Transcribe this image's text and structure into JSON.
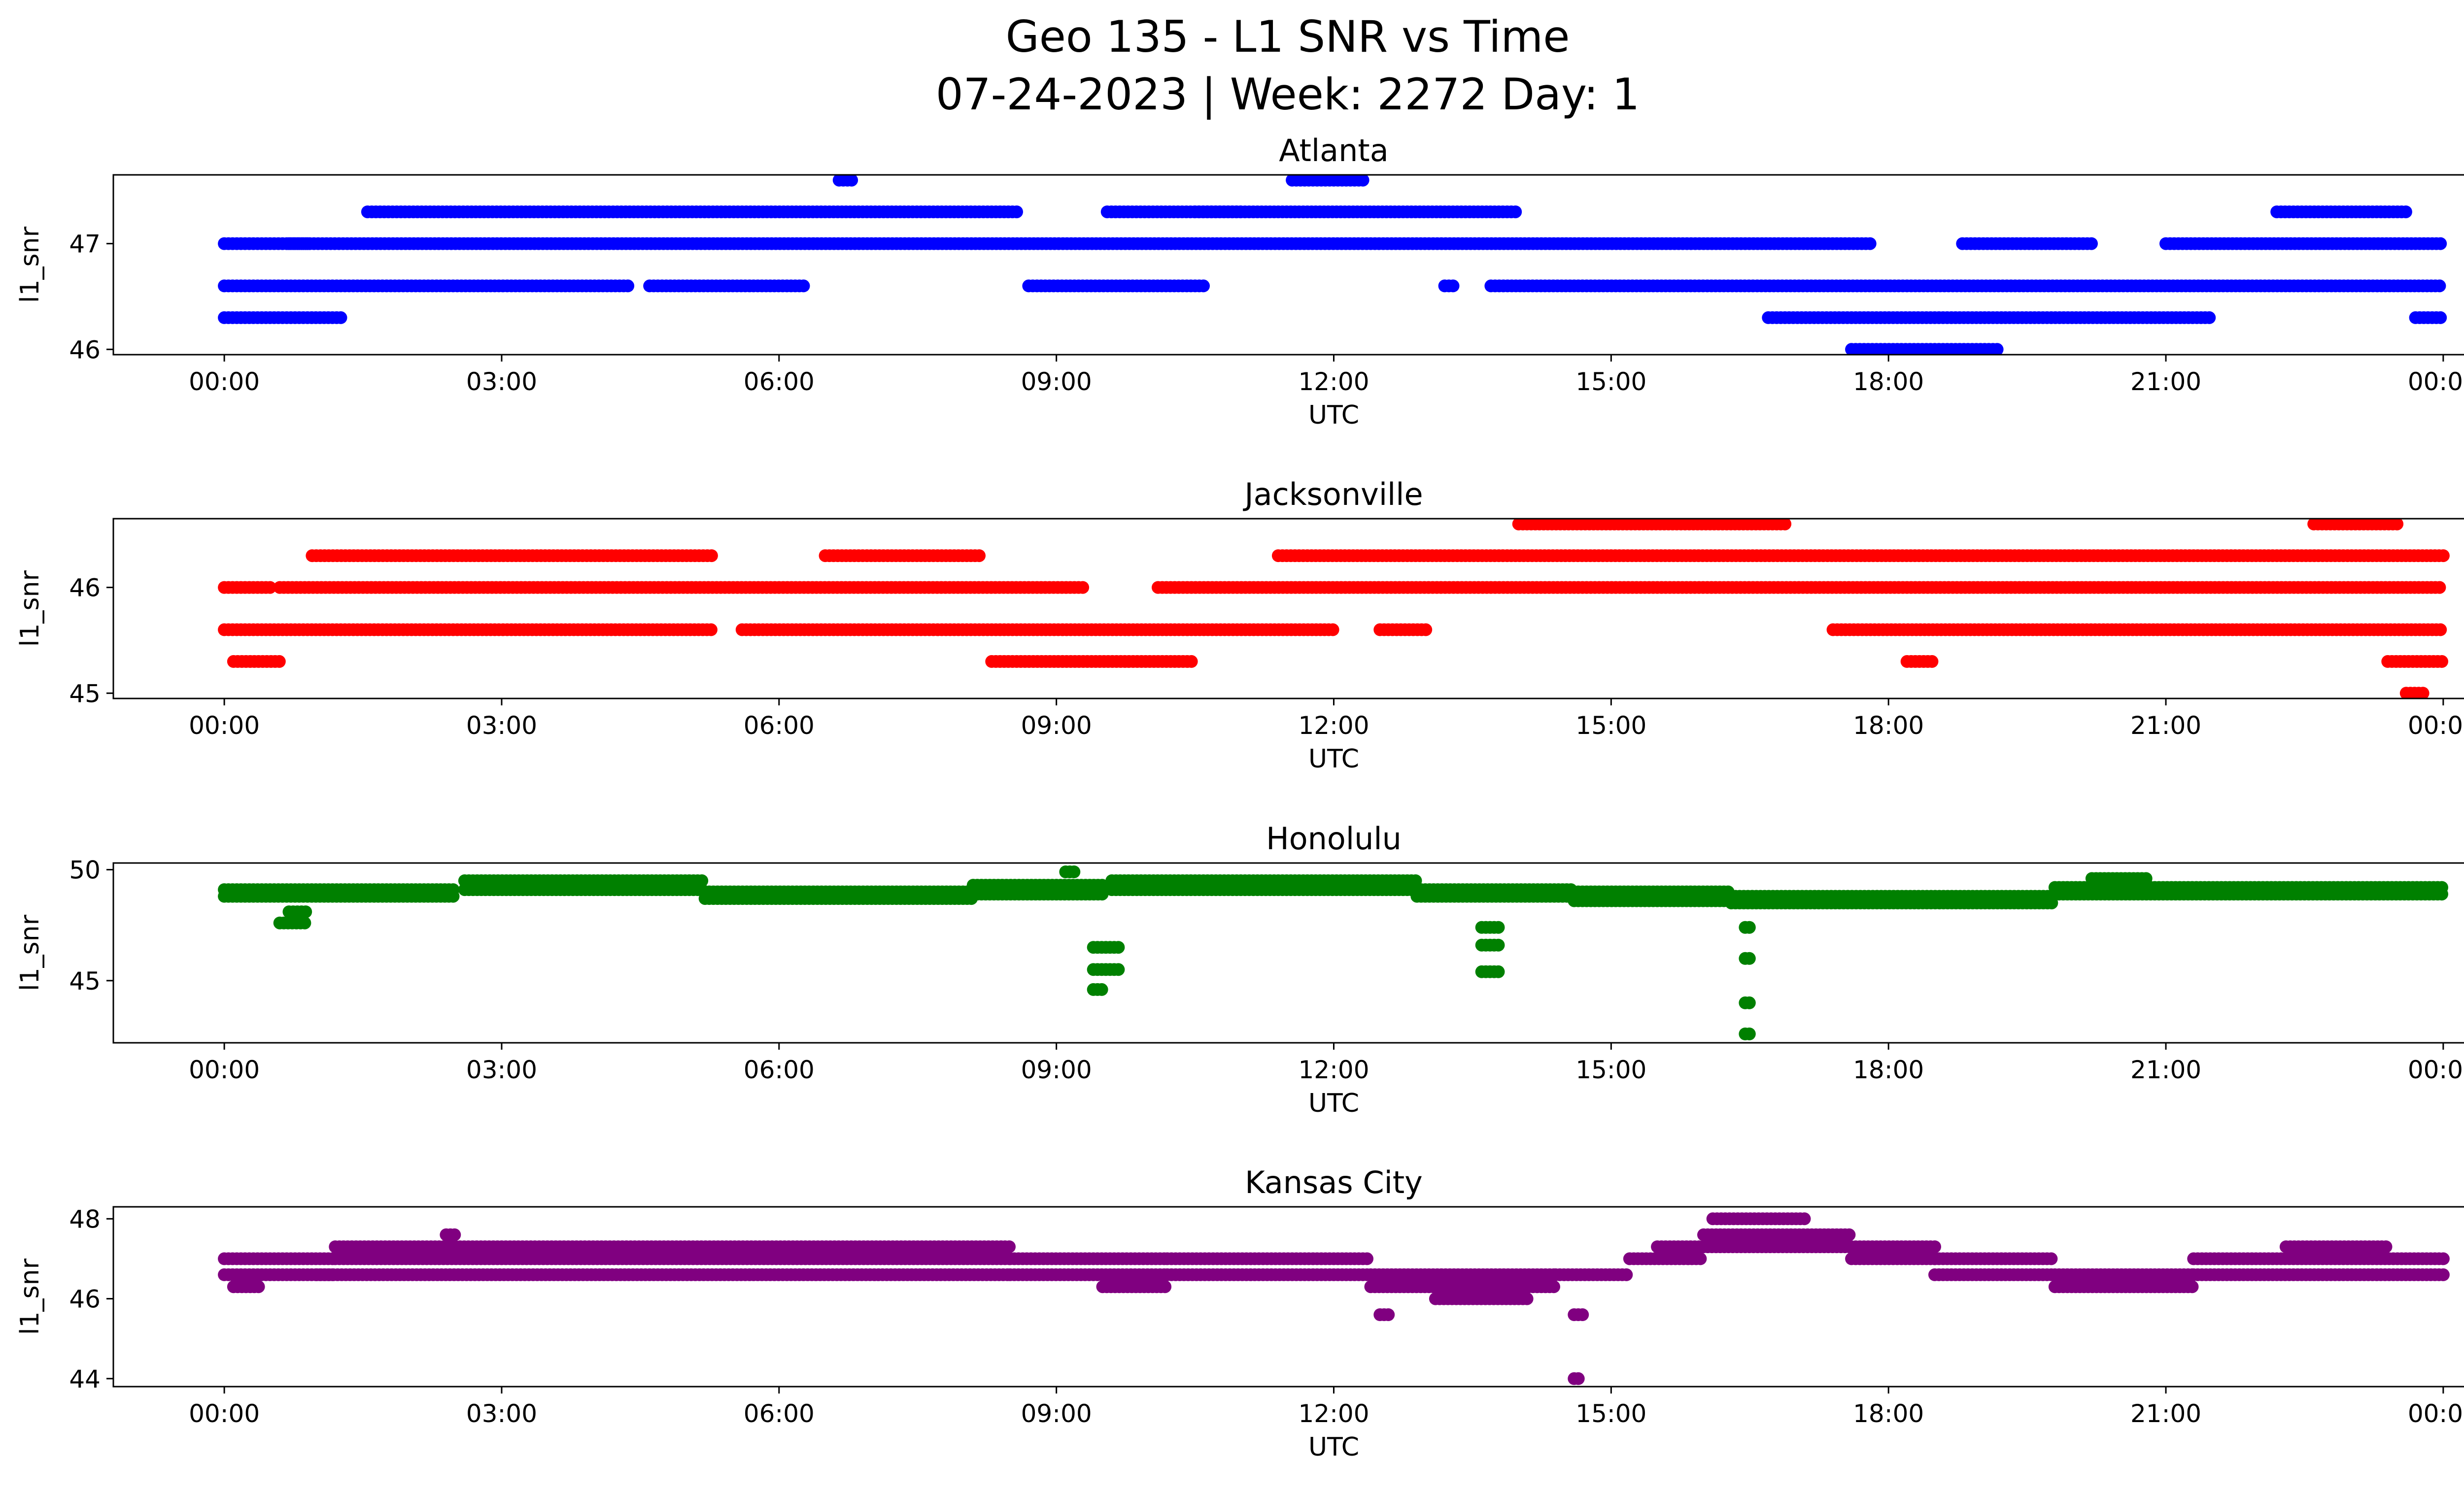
{
  "figure": {
    "title_line1": "Geo 135 - L1 SNR vs Time",
    "title_line2": "07-24-2023 | Week: 2272 Day: 1"
  },
  "chart_data": [
    {
      "type": "scatter",
      "title": "Atlanta",
      "xlabel": "UTC",
      "ylabel": "l1_snr",
      "color": "#0000ff",
      "x_ticks": [
        "00:00",
        "03:00",
        "06:00",
        "09:00",
        "12:00",
        "15:00",
        "18:00",
        "21:00",
        "00:00"
      ],
      "y_ticks": [
        46,
        47
      ],
      "xlim_hours": [
        -1.2,
        25.2
      ],
      "ylim": [
        45.95,
        47.65
      ],
      "grid": false,
      "series": [
        {
          "name": "",
          "values": [
            {
              "t0": 0.0,
              "t1": 1.3,
              "y": 46.3
            },
            {
              "t0": 0.0,
              "t1": 4.4,
              "y": 46.6
            },
            {
              "t0": 4.6,
              "t1": 6.3,
              "y": 46.6
            },
            {
              "t0": 0.0,
              "t1": 0.9,
              "y": 47.0
            },
            {
              "t0": 0.7,
              "t1": 17.8,
              "y": 47.0
            },
            {
              "t0": 1.55,
              "t1": 8.6,
              "y": 47.3
            },
            {
              "t0": 6.65,
              "t1": 6.8,
              "y": 47.6
            },
            {
              "t0": 8.7,
              "t1": 10.6,
              "y": 46.6
            },
            {
              "t0": 9.55,
              "t1": 11.0,
              "y": 47.3
            },
            {
              "t0": 10.5,
              "t1": 14.0,
              "y": 47.3
            },
            {
              "t0": 11.55,
              "t1": 12.35,
              "y": 47.6
            },
            {
              "t0": 13.2,
              "t1": 13.3,
              "y": 46.6
            },
            {
              "t0": 13.7,
              "t1": 24.0,
              "y": 46.6
            },
            {
              "t0": 16.7,
              "t1": 21.5,
              "y": 46.3
            },
            {
              "t0": 17.6,
              "t1": 19.2,
              "y": 46.0
            },
            {
              "t0": 18.8,
              "t1": 20.2,
              "y": 47.0
            },
            {
              "t0": 21.0,
              "t1": 24.0,
              "y": 47.0
            },
            {
              "t0": 22.2,
              "t1": 23.6,
              "y": 47.3
            },
            {
              "t0": 23.7,
              "t1": 24.0,
              "y": 46.3
            }
          ]
        }
      ]
    },
    {
      "type": "scatter",
      "title": "Jacksonville",
      "xlabel": "UTC",
      "ylabel": "l1_snr",
      "color": "#ff0000",
      "x_ticks": [
        "00:00",
        "03:00",
        "06:00",
        "09:00",
        "12:00",
        "15:00",
        "18:00",
        "21:00",
        "00:00"
      ],
      "y_ticks": [
        45,
        46
      ],
      "xlim_hours": [
        -1.2,
        25.2
      ],
      "ylim": [
        44.95,
        46.65
      ],
      "grid": false,
      "series": [
        {
          "name": "",
          "values": [
            {
              "t0": 0.0,
              "t1": 0.5,
              "y": 46.0
            },
            {
              "t0": 0.0,
              "t1": 5.3,
              "y": 45.6
            },
            {
              "t0": 0.1,
              "t1": 0.6,
              "y": 45.3
            },
            {
              "t0": 0.6,
              "t1": 9.3,
              "y": 46.0
            },
            {
              "t0": 0.95,
              "t1": 5.3,
              "y": 46.3
            },
            {
              "t0": 5.6,
              "t1": 12.0,
              "y": 45.6
            },
            {
              "t0": 6.5,
              "t1": 8.2,
              "y": 46.3
            },
            {
              "t0": 8.3,
              "t1": 10.5,
              "y": 45.3
            },
            {
              "t0": 10.1,
              "t1": 24.0,
              "y": 46.0
            },
            {
              "t0": 11.4,
              "t1": 24.0,
              "y": 46.3
            },
            {
              "t0": 12.5,
              "t1": 13.0,
              "y": 45.6
            },
            {
              "t0": 14.0,
              "t1": 16.9,
              "y": 46.6
            },
            {
              "t0": 17.4,
              "t1": 24.0,
              "y": 45.6
            },
            {
              "t0": 18.2,
              "t1": 18.5,
              "y": 45.3
            },
            {
              "t0": 22.6,
              "t1": 23.5,
              "y": 46.6
            },
            {
              "t0": 23.4,
              "t1": 24.0,
              "y": 45.3
            },
            {
              "t0": 23.6,
              "t1": 23.8,
              "y": 45.0
            }
          ]
        }
      ]
    },
    {
      "type": "scatter",
      "title": "Honolulu",
      "xlabel": "UTC",
      "ylabel": "l1_snr",
      "color": "#008000",
      "x_ticks": [
        "00:00",
        "03:00",
        "06:00",
        "09:00",
        "12:00",
        "15:00",
        "18:00",
        "21:00",
        "00:00"
      ],
      "y_ticks": [
        45,
        50
      ],
      "xlim_hours": [
        -1.2,
        25.2
      ],
      "ylim": [
        42.2,
        50.3
      ],
      "grid": false,
      "series": [
        {
          "name": "",
          "values": [
            {
              "t0": 0.0,
              "t1": 2.5,
              "y": 49.1
            },
            {
              "t0": 0.0,
              "t1": 2.5,
              "y": 48.8
            },
            {
              "t0": 0.6,
              "t1": 0.9,
              "y": 47.6
            },
            {
              "t0": 0.7,
              "t1": 0.9,
              "y": 48.1
            },
            {
              "t0": 2.6,
              "t1": 5.2,
              "y": 49.5
            },
            {
              "t0": 2.6,
              "t1": 5.2,
              "y": 49.1
            },
            {
              "t0": 5.2,
              "t1": 8.1,
              "y": 49.0
            },
            {
              "t0": 5.2,
              "t1": 8.1,
              "y": 48.7
            },
            {
              "t0": 8.1,
              "t1": 9.5,
              "y": 49.3
            },
            {
              "t0": 8.1,
              "t1": 9.5,
              "y": 48.9
            },
            {
              "t0": 9.1,
              "t1": 9.2,
              "y": 49.9
            },
            {
              "t0": 9.4,
              "t1": 9.7,
              "y": 46.5
            },
            {
              "t0": 9.4,
              "t1": 9.7,
              "y": 45.5
            },
            {
              "t0": 9.4,
              "t1": 9.5,
              "y": 44.6
            },
            {
              "t0": 9.6,
              "t1": 12.9,
              "y": 49.5
            },
            {
              "t0": 9.6,
              "t1": 12.9,
              "y": 49.1
            },
            {
              "t0": 12.9,
              "t1": 14.6,
              "y": 49.1
            },
            {
              "t0": 12.9,
              "t1": 14.6,
              "y": 48.8
            },
            {
              "t0": 13.6,
              "t1": 13.8,
              "y": 47.4
            },
            {
              "t0": 13.6,
              "t1": 13.8,
              "y": 46.6
            },
            {
              "t0": 13.6,
              "t1": 13.8,
              "y": 45.4
            },
            {
              "t0": 14.6,
              "t1": 16.3,
              "y": 49.0
            },
            {
              "t0": 14.6,
              "t1": 16.3,
              "y": 48.6
            },
            {
              "t0": 16.3,
              "t1": 19.8,
              "y": 48.8
            },
            {
              "t0": 16.3,
              "t1": 19.8,
              "y": 48.5
            },
            {
              "t0": 16.45,
              "t1": 16.5,
              "y": 47.4
            },
            {
              "t0": 16.45,
              "t1": 16.5,
              "y": 46.0
            },
            {
              "t0": 16.45,
              "t1": 16.5,
              "y": 44.0
            },
            {
              "t0": 16.45,
              "t1": 16.5,
              "y": 42.6
            },
            {
              "t0": 19.8,
              "t1": 24.0,
              "y": 49.2
            },
            {
              "t0": 19.8,
              "t1": 24.0,
              "y": 48.9
            },
            {
              "t0": 20.2,
              "t1": 20.8,
              "y": 49.6
            }
          ]
        }
      ]
    },
    {
      "type": "scatter",
      "title": "Kansas City",
      "xlabel": "UTC",
      "ylabel": "l1_snr",
      "color": "#800080",
      "x_ticks": [
        "00:00",
        "03:00",
        "06:00",
        "09:00",
        "12:00",
        "15:00",
        "18:00",
        "21:00",
        "00:00"
      ],
      "y_ticks": [
        44,
        46,
        48
      ],
      "xlim_hours": [
        -1.2,
        25.2
      ],
      "ylim": [
        43.8,
        48.3
      ],
      "grid": false,
      "series": [
        {
          "name": "",
          "values": [
            {
              "t0": 0.0,
              "t1": 1.2,
              "y": 47.0
            },
            {
              "t0": 0.0,
              "t1": 1.2,
              "y": 46.6
            },
            {
              "t0": 0.1,
              "t1": 0.4,
              "y": 46.3
            },
            {
              "t0": 1.2,
              "t1": 8.5,
              "y": 47.3
            },
            {
              "t0": 1.2,
              "t1": 8.5,
              "y": 47.0
            },
            {
              "t0": 1.0,
              "t1": 8.5,
              "y": 46.6
            },
            {
              "t0": 2.4,
              "t1": 2.5,
              "y": 47.6
            },
            {
              "t0": 8.5,
              "t1": 10.2,
              "y": 47.0
            },
            {
              "t0": 8.5,
              "t1": 10.2,
              "y": 46.6
            },
            {
              "t0": 9.5,
              "t1": 10.2,
              "y": 46.3
            },
            {
              "t0": 10.2,
              "t1": 12.4,
              "y": 47.0
            },
            {
              "t0": 10.2,
              "t1": 12.4,
              "y": 46.6
            },
            {
              "t0": 12.4,
              "t1": 14.4,
              "y": 46.6
            },
            {
              "t0": 12.4,
              "t1": 14.4,
              "y": 46.3
            },
            {
              "t0": 13.1,
              "t1": 14.1,
              "y": 46.0
            },
            {
              "t0": 12.5,
              "t1": 12.6,
              "y": 45.6
            },
            {
              "t0": 14.4,
              "t1": 15.2,
              "y": 46.6
            },
            {
              "t0": 14.6,
              "t1": 14.7,
              "y": 45.6
            },
            {
              "t0": 14.6,
              "t1": 14.65,
              "y": 44.0
            },
            {
              "t0": 15.2,
              "t1": 16.0,
              "y": 47.0
            },
            {
              "t0": 15.5,
              "t1": 16.0,
              "y": 47.3
            },
            {
              "t0": 16.0,
              "t1": 17.6,
              "y": 47.6
            },
            {
              "t0": 16.0,
              "t1": 17.6,
              "y": 47.3
            },
            {
              "t0": 16.1,
              "t1": 17.1,
              "y": 48.0
            },
            {
              "t0": 17.6,
              "t1": 18.5,
              "y": 47.3
            },
            {
              "t0": 17.6,
              "t1": 18.5,
              "y": 47.0
            },
            {
              "t0": 18.5,
              "t1": 19.8,
              "y": 47.0
            },
            {
              "t0": 18.5,
              "t1": 19.8,
              "y": 46.6
            },
            {
              "t0": 19.8,
              "t1": 21.3,
              "y": 46.6
            },
            {
              "t0": 19.8,
              "t1": 21.3,
              "y": 46.3
            },
            {
              "t0": 21.3,
              "t1": 24.0,
              "y": 47.0
            },
            {
              "t0": 21.3,
              "t1": 24.0,
              "y": 46.6
            },
            {
              "t0": 22.3,
              "t1": 23.4,
              "y": 47.3
            }
          ]
        }
      ]
    }
  ]
}
